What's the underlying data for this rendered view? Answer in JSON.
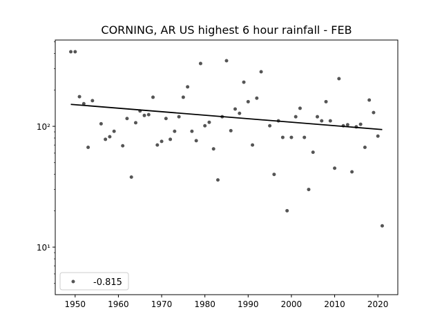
{
  "chart_data": {
    "type": "scatter",
    "title": "CORNING, AR US highest 6 hour rainfall - FEB",
    "xlabel": "",
    "ylabel": "",
    "yscale": "log",
    "xlim": [
      1945.4,
      2024.6
    ],
    "ylim": [
      4.04,
      518
    ],
    "xticks": [
      1950,
      1960,
      1970,
      1980,
      1990,
      2000,
      2010,
      2020
    ],
    "xtick_labels": [
      "1950",
      "1960",
      "1970",
      "1980",
      "1990",
      "2000",
      "2010",
      "2020"
    ],
    "yticks": [
      10,
      100
    ],
    "ytick_labels": [
      "10¹",
      "10²"
    ],
    "grid": false,
    "legend": {
      "placement": "lower-left",
      "entries": [
        "-0.815"
      ]
    },
    "colors": {
      "points": "#555555",
      "trend": "#000000"
    },
    "series": [
      {
        "name": "-0.815",
        "kind": "scatter",
        "x": [
          1949,
          1950,
          1951,
          1952,
          1953,
          1954,
          1956,
          1957,
          1958,
          1959,
          1961,
          1962,
          1963,
          1964,
          1965,
          1966,
          1967,
          1968,
          1969,
          1970,
          1971,
          1972,
          1973,
          1974,
          1975,
          1976,
          1977,
          1978,
          1979,
          1980,
          1981,
          1982,
          1983,
          1984,
          1985,
          1986,
          1987,
          1988,
          1989,
          1990,
          1991,
          1992,
          1993,
          1995,
          1996,
          1997,
          1998,
          1999,
          2000,
          2001,
          2002,
          2003,
          2004,
          2005,
          2006,
          2007,
          2008,
          2009,
          2010,
          2011,
          2012,
          2013,
          2014,
          2015,
          2016,
          2017,
          2018,
          2019,
          2020,
          2021
        ],
        "y": [
          414,
          414,
          176,
          154,
          67,
          163,
          105,
          78,
          82,
          91,
          69,
          116,
          38,
          107,
          134,
          123,
          125,
          174,
          70,
          75,
          116,
          78,
          91,
          120,
          174,
          212,
          91,
          76,
          331,
          101,
          108,
          65,
          36,
          120,
          349,
          92,
          139,
          128,
          232,
          160,
          70,
          171,
          283,
          101,
          40,
          111,
          81,
          20,
          81,
          120,
          141,
          81,
          30,
          61,
          120,
          111,
          160,
          111,
          45,
          248,
          101,
          103,
          42,
          99,
          104,
          67,
          165,
          130,
          83,
          15
        ]
      },
      {
        "name": "trend",
        "kind": "line",
        "x": [
          1949,
          2021
        ],
        "y": [
          152,
          94
        ]
      }
    ]
  }
}
